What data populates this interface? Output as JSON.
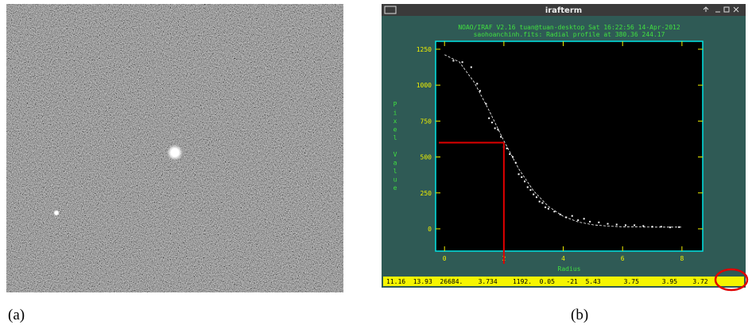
{
  "panels": {
    "a": "(a)",
    "b": "(b)"
  },
  "window": {
    "title": "irafterm",
    "status_bar": "11.16  13.93  26684.    3.734    1192.  0.05   -21  5.43      3.75      3.95    3.72"
  },
  "chart_data": {
    "type": "scatter",
    "title": "NOAO/IRAF V2.16 tuan@tuan-desktop Sat 16:22:56 14-Apr-2012",
    "subtitle": "saohoanchinh.fits: Radial profile at 380.36 244.17",
    "x_label": "Radius",
    "y_label": "Pixel Value",
    "xlim": [
      -0.3,
      8.7
    ],
    "ylim": [
      -155,
      1305
    ],
    "xticks": [
      0,
      2,
      4,
      6,
      8
    ],
    "yticks": [
      0,
      250,
      500,
      750,
      1000,
      1250
    ],
    "points": {
      "color": "#ffffff",
      "x": [
        0.3,
        0.6,
        0.9,
        1.1,
        1.2,
        1.4,
        1.5,
        1.6,
        1.7,
        1.8,
        1.9,
        2.0,
        2.1,
        2.2,
        2.3,
        2.4,
        2.5,
        2.6,
        2.7,
        2.8,
        2.9,
        3.0,
        3.1,
        3.2,
        3.3,
        3.4,
        3.5,
        3.7,
        3.9,
        4.1,
        4.3,
        4.5,
        4.7,
        4.9,
        5.2,
        5.5,
        5.8,
        6.1,
        6.4,
        6.7,
        7.0,
        7.3,
        7.6,
        7.9
      ],
      "y": [
        1170,
        1160,
        1125,
        1010,
        960,
        870,
        770,
        740,
        700,
        690,
        640,
        570,
        560,
        520,
        500,
        460,
        380,
        360,
        330,
        290,
        270,
        240,
        220,
        190,
        180,
        150,
        140,
        120,
        100,
        80,
        90,
        60,
        70,
        50,
        45,
        35,
        30,
        25,
        25,
        20,
        15,
        15,
        10,
        12
      ]
    },
    "fit": {
      "color": "#ffffff",
      "x": [
        0,
        0.5,
        1,
        1.5,
        2,
        2.5,
        3,
        3.5,
        4,
        4.5,
        5,
        5.5,
        6,
        6.5,
        7,
        7.5,
        8
      ],
      "y": [
        1212,
        1161,
        1021,
        824,
        612,
        418,
        264,
        156,
        87,
        48,
        28,
        19,
        14,
        13,
        12,
        12,
        12
      ]
    },
    "marker": {
      "x": 2,
      "y": 600,
      "color": "#e00000"
    }
  }
}
